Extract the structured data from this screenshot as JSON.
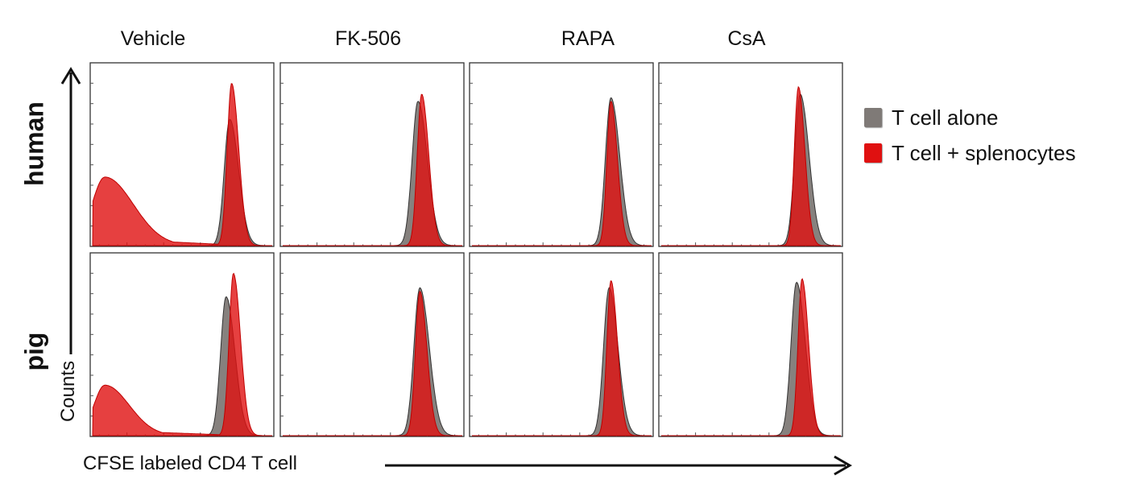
{
  "columns": [
    "Vehicle",
    "FK-506",
    "RAPA",
    "CsA"
  ],
  "rows": [
    "human",
    "pig"
  ],
  "ylabel": "Counts",
  "xlabel": "CFSE labeled CD4 T cell",
  "legend": [
    {
      "label": "T cell alone",
      "color": "#7f7a77"
    },
    {
      "label": "T cell + splenocytes",
      "color": "#e01010"
    }
  ],
  "chart_data": {
    "type": "area",
    "title": "",
    "xlabel": "CFSE labeled CD4 T cell",
    "ylabel": "Counts",
    "x_scale": "log",
    "grid": false,
    "legend_position": "right",
    "panels": [
      {
        "row": "human",
        "column": "Vehicle",
        "series": [
          {
            "name": "T cell alone",
            "peaks": [
              {
                "center": 0.76,
                "height": 0.7,
                "width": 0.03
              }
            ]
          },
          {
            "name": "T cell + splenocytes",
            "peaks": [
              {
                "center": 0.77,
                "height": 0.9,
                "width": 0.024
              },
              {
                "center": 0.08,
                "height": 0.38,
                "width": 0.07
              }
            ],
            "tail_level": 0.04
          }
        ]
      },
      {
        "row": "human",
        "column": "FK-506",
        "series": [
          {
            "name": "T cell alone",
            "peaks": [
              {
                "center": 0.75,
                "height": 0.8,
                "width": 0.032
              }
            ]
          },
          {
            "name": "T cell + splenocytes",
            "peaks": [
              {
                "center": 0.77,
                "height": 0.84,
                "width": 0.024
              }
            ]
          }
        ]
      },
      {
        "row": "human",
        "column": "RAPA",
        "series": [
          {
            "name": "T cell alone",
            "peaks": [
              {
                "center": 0.77,
                "height": 0.82,
                "width": 0.03
              }
            ]
          },
          {
            "name": "T cell + splenocytes",
            "peaks": [
              {
                "center": 0.77,
                "height": 0.8,
                "width": 0.022
              }
            ]
          }
        ]
      },
      {
        "row": "human",
        "column": "CsA",
        "series": [
          {
            "name": "T cell alone",
            "peaks": [
              {
                "center": 0.77,
                "height": 0.84,
                "width": 0.03
              }
            ]
          },
          {
            "name": "T cell + splenocytes",
            "peaks": [
              {
                "center": 0.76,
                "height": 0.88,
                "width": 0.022
              }
            ]
          }
        ]
      },
      {
        "row": "pig",
        "column": "Vehicle",
        "series": [
          {
            "name": "T cell alone",
            "peaks": [
              {
                "center": 0.74,
                "height": 0.77,
                "width": 0.03
              }
            ]
          },
          {
            "name": "T cell + splenocytes",
            "peaks": [
              {
                "center": 0.78,
                "height": 0.9,
                "width": 0.024
              },
              {
                "center": 0.08,
                "height": 0.28,
                "width": 0.06
              }
            ],
            "tail_level": 0.03
          }
        ]
      },
      {
        "row": "pig",
        "column": "FK-506",
        "series": [
          {
            "name": "T cell alone",
            "peaks": [
              {
                "center": 0.76,
                "height": 0.82,
                "width": 0.032
              }
            ]
          },
          {
            "name": "T cell + splenocytes",
            "peaks": [
              {
                "center": 0.76,
                "height": 0.8,
                "width": 0.024
              }
            ]
          }
        ]
      },
      {
        "row": "pig",
        "column": "RAPA",
        "series": [
          {
            "name": "T cell alone",
            "peaks": [
              {
                "center": 0.76,
                "height": 0.82,
                "width": 0.03
              }
            ]
          },
          {
            "name": "T cell + splenocytes",
            "peaks": [
              {
                "center": 0.77,
                "height": 0.86,
                "width": 0.022
              }
            ]
          }
        ]
      },
      {
        "row": "pig",
        "column": "CsA",
        "series": [
          {
            "name": "T cell alone",
            "peaks": [
              {
                "center": 0.75,
                "height": 0.85,
                "width": 0.03
              }
            ]
          },
          {
            "name": "T cell + splenocytes",
            "peaks": [
              {
                "center": 0.78,
                "height": 0.87,
                "width": 0.022
              }
            ]
          }
        ]
      }
    ]
  }
}
